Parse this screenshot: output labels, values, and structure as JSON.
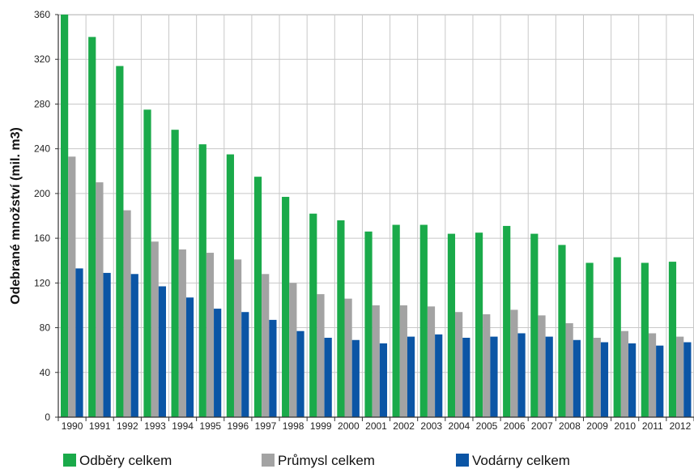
{
  "chart_data": {
    "type": "bar",
    "title": "",
    "xlabel": "",
    "ylabel": "Odebrané množství (mil. m3)",
    "ylim": [
      0,
      360
    ],
    "yticks": [
      0,
      40,
      80,
      120,
      160,
      200,
      240,
      280,
      320,
      360
    ],
    "grid": true,
    "legend_position": "bottom",
    "categories": [
      "1990",
      "1991",
      "1992",
      "1993",
      "1994",
      "1995",
      "1996",
      "1997",
      "1998",
      "1999",
      "2000",
      "2001",
      "2002",
      "2003",
      "2004",
      "2005",
      "2006",
      "2007",
      "2008",
      "2009",
      "2010",
      "2011",
      "2012"
    ],
    "series": [
      {
        "name": "Odběry celkem",
        "color": "#1aaa4a",
        "values": [
          360,
          340,
          314,
          275,
          257,
          244,
          235,
          215,
          197,
          182,
          176,
          166,
          172,
          172,
          164,
          165,
          171,
          164,
          154,
          138,
          143,
          138,
          139
        ]
      },
      {
        "name": "Průmysl celkem",
        "color": "#a3a3a3",
        "values": [
          233,
          210,
          185,
          157,
          150,
          147,
          141,
          128,
          120,
          110,
          106,
          100,
          100,
          99,
          94,
          92,
          96,
          91,
          84,
          71,
          77,
          75,
          72
        ]
      },
      {
        "name": "Vodárny celkem",
        "color": "#0b55a5",
        "values": [
          133,
          129,
          128,
          117,
          107,
          97,
          94,
          87,
          77,
          71,
          69,
          66,
          72,
          74,
          71,
          72,
          75,
          72,
          69,
          67,
          66,
          64,
          67
        ]
      }
    ]
  }
}
